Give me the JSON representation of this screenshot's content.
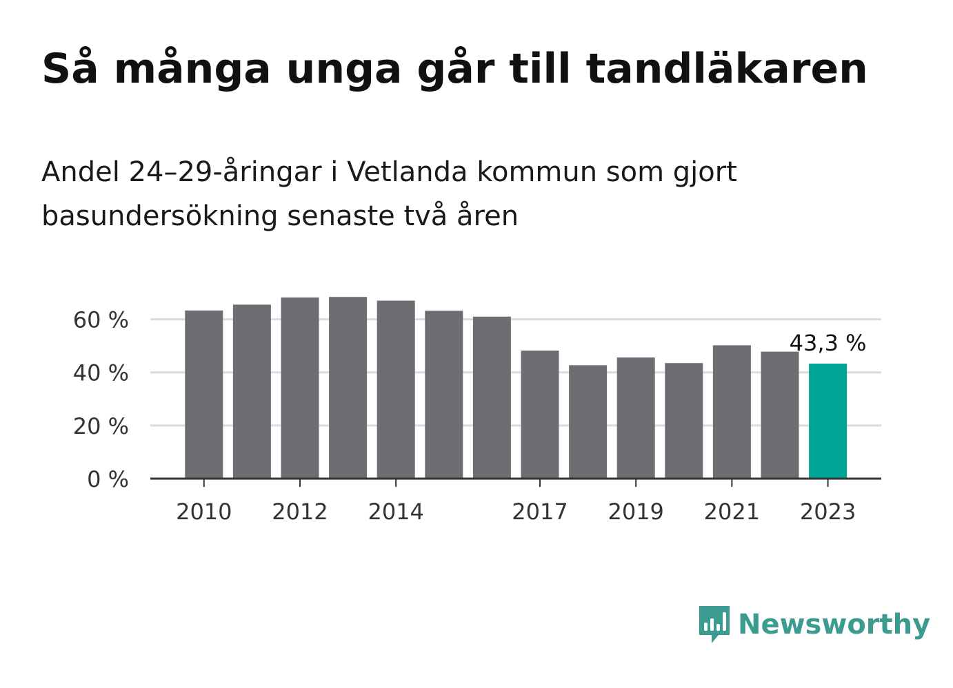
{
  "title": "Så många unga går till tandläkaren",
  "subtitle": "Andel 24–29-åringar i Vetlanda kommun som gjort basundersökning senaste två åren",
  "chart_data": {
    "type": "bar",
    "categories": [
      "2010",
      "2011",
      "2012",
      "2013",
      "2014",
      "2015",
      "2016",
      "2017",
      "2018",
      "2019",
      "2020",
      "2021",
      "2022",
      "2023"
    ],
    "values": [
      63.3,
      65.5,
      68.2,
      68.4,
      67.0,
      63.2,
      61.0,
      48.2,
      42.7,
      45.6,
      43.5,
      50.2,
      47.8,
      43.3
    ],
    "x_tick_labels": [
      "2010",
      "",
      "2012",
      "",
      "2014",
      "",
      "",
      "2017",
      "",
      "2019",
      "",
      "2021",
      "",
      "2023"
    ],
    "y_ticks": [
      0,
      20,
      40,
      60
    ],
    "y_tick_labels": [
      "0 %",
      "20 %",
      "40 %",
      "60 %"
    ],
    "ylim": [
      0,
      70
    ],
    "annotation": {
      "index": 13,
      "text": "43,3 %"
    },
    "xlabel": "",
    "ylabel": "",
    "grid": true,
    "colors": {
      "bar": "#6e6d73",
      "highlight": "#00a597",
      "grid": "#dcdcdc",
      "axis": "#333333",
      "text": "#333333"
    }
  },
  "brand": {
    "name": "Newsworthy",
    "icon": "newsworthy-logo-icon",
    "color": "#3b9b91"
  }
}
